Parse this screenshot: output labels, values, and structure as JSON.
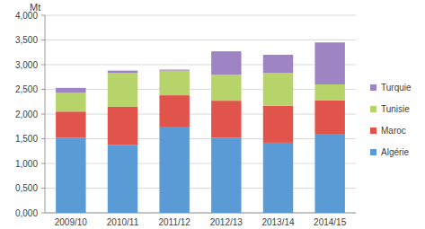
{
  "chart_data": {
    "type": "bar",
    "stacked": true,
    "ylabel": "Mt",
    "categories": [
      "2009/10",
      "2010/11",
      "2011/12",
      "2012/13",
      "2013/14",
      "2014/15"
    ],
    "series": [
      {
        "name": "Algérie",
        "color": "#5b9bd5",
        "values": [
          1.52,
          1.37,
          1.73,
          1.52,
          1.42,
          1.6
        ]
      },
      {
        "name": "Maroc",
        "color": "#e0544b",
        "values": [
          0.53,
          0.78,
          0.65,
          0.75,
          0.75,
          0.68
        ]
      },
      {
        "name": "Tunisie",
        "color": "#b6d46a",
        "values": [
          0.38,
          0.68,
          0.5,
          0.53,
          0.66,
          0.32
        ]
      },
      {
        "name": "Turquie",
        "color": "#9f84c4",
        "values": [
          0.1,
          0.05,
          0.02,
          0.47,
          0.37,
          0.85
        ]
      }
    ],
    "ylim": [
      0,
      4
    ],
    "yticks": [
      {
        "value": 0,
        "label": "0,000"
      },
      {
        "value": 0.5,
        "label": "0,500"
      },
      {
        "value": 1,
        "label": "1,000"
      },
      {
        "value": 1.5,
        "label": "1,500"
      },
      {
        "value": 2,
        "label": "2,000"
      },
      {
        "value": 2.5,
        "label": "2,500"
      },
      {
        "value": 3,
        "label": "3,000"
      },
      {
        "value": 3.5,
        "label": "3,500"
      },
      {
        "value": 4,
        "label": "4,000"
      }
    ],
    "grid": true,
    "legend": "right"
  }
}
